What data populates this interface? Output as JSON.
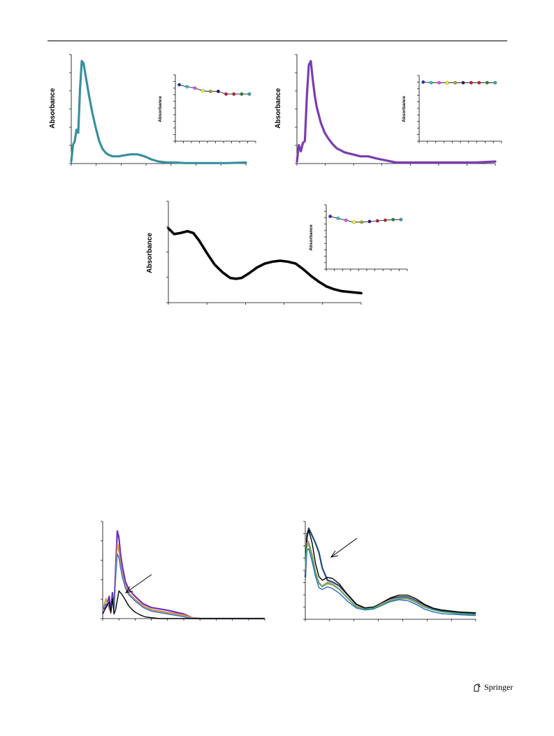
{
  "header": {
    "rule": true
  },
  "footer": {
    "publisher": "Springer",
    "logo_icon": "springer-horse-icon"
  },
  "colors": {
    "teal": "#3a8f9f",
    "purple": "#7a3cb0",
    "black": "#000000",
    "marker_sequence": [
      "#2233cc",
      "#22cccc",
      "#ff44ff",
      "#ffff00",
      "#aaaa22",
      "#331177",
      "#cc1144",
      "#cc2222",
      "#228833",
      "#33aaaa"
    ]
  },
  "chart_data": [
    {
      "id": "panel-top-left",
      "type": "line",
      "ylabel": "Absorbance",
      "xlabel": "",
      "title": "",
      "color": "#3a8f9f",
      "x": [
        0,
        1,
        2,
        3,
        4,
        5,
        6,
        7,
        8,
        9,
        10,
        12,
        14,
        16,
        18,
        20,
        22,
        24,
        27,
        30,
        34,
        38,
        42,
        46,
        50,
        55,
        60,
        65,
        70,
        75,
        80,
        90,
        100
      ],
      "y": [
        0.02,
        0.18,
        0.22,
        0.33,
        0.3,
        0.72,
        1.0,
        0.98,
        0.88,
        0.78,
        0.68,
        0.5,
        0.35,
        0.22,
        0.14,
        0.1,
        0.08,
        0.07,
        0.07,
        0.08,
        0.09,
        0.09,
        0.07,
        0.04,
        0.02,
        0.01,
        0.01,
        0.005,
        0.005,
        0.005,
        0.005,
        0.005,
        0.01
      ],
      "inset": {
        "type": "line",
        "ylabel": "Absorbance",
        "markers": true,
        "values": [
          0.85,
          0.82,
          0.8,
          0.76,
          0.75,
          0.75,
          0.71,
          0.71,
          0.71,
          0.71
        ]
      }
    },
    {
      "id": "panel-top-right",
      "type": "line",
      "ylabel": "Absorbance",
      "xlabel": "",
      "title": "",
      "color": "#7a3cb0",
      "x": [
        0,
        1,
        2,
        3,
        4,
        5,
        6,
        7,
        8,
        9,
        10,
        12,
        14,
        16,
        18,
        20,
        24,
        28,
        32,
        36,
        40,
        45,
        50,
        55,
        60,
        65,
        70,
        80,
        90,
        100
      ],
      "y": [
        0.02,
        0.18,
        0.12,
        0.2,
        0.22,
        0.65,
        0.96,
        1.0,
        0.82,
        0.66,
        0.55,
        0.4,
        0.3,
        0.24,
        0.19,
        0.15,
        0.11,
        0.09,
        0.07,
        0.07,
        0.05,
        0.03,
        0.01,
        0.01,
        0.01,
        0.01,
        0.01,
        0.01,
        0.01,
        0.02
      ],
      "inset": {
        "type": "line",
        "ylabel": "Absorbance",
        "markers": true,
        "values": [
          0.9,
          0.89,
          0.89,
          0.89,
          0.89,
          0.89,
          0.89,
          0.89,
          0.89,
          0.89
        ]
      }
    },
    {
      "id": "panel-middle",
      "type": "line",
      "ylabel": "Absorbance",
      "xlabel": "",
      "title": "",
      "color": "#000000",
      "x": [
        0,
        3,
        6,
        10,
        13,
        16,
        20,
        24,
        28,
        32,
        35,
        38,
        42,
        46,
        50,
        54,
        58,
        62,
        66,
        70,
        74,
        78,
        82,
        86,
        90,
        95,
        100
      ],
      "y": [
        0.78,
        0.72,
        0.73,
        0.75,
        0.73,
        0.65,
        0.52,
        0.4,
        0.32,
        0.26,
        0.25,
        0.26,
        0.31,
        0.37,
        0.41,
        0.43,
        0.44,
        0.43,
        0.41,
        0.35,
        0.28,
        0.22,
        0.17,
        0.14,
        0.12,
        0.11,
        0.1
      ],
      "inset": {
        "type": "line",
        "ylabel": "Absorbance",
        "markers": true,
        "values": [
          0.82,
          0.79,
          0.76,
          0.73,
          0.73,
          0.74,
          0.75,
          0.76,
          0.77,
          0.77
        ]
      }
    },
    {
      "id": "panel-bottom-left",
      "type": "line",
      "ylabel": "",
      "xlabel": "",
      "title": "",
      "arrow": true,
      "series": [
        {
          "color": "#6a2fc0",
          "x": [
            0,
            2,
            4,
            5,
            6,
            7,
            8,
            9,
            10,
            11,
            12,
            14,
            16,
            20,
            25,
            30,
            40,
            50,
            55,
            60,
            70,
            100
          ],
          "y": [
            0.1,
            0.12,
            0.24,
            0.08,
            0.28,
            0.12,
            0.55,
            0.95,
            0.88,
            0.7,
            0.58,
            0.4,
            0.32,
            0.24,
            0.16,
            0.12,
            0.09,
            0.05,
            0.01,
            0.0,
            0.0,
            0.0
          ]
        },
        {
          "color": "#e08a30",
          "x": [
            0,
            2,
            4,
            5,
            6,
            7,
            8,
            9,
            10,
            11,
            12,
            14,
            16,
            20,
            25,
            30,
            40,
            50,
            55,
            60,
            70,
            100
          ],
          "y": [
            0.1,
            0.22,
            0.1,
            0.08,
            0.22,
            0.1,
            0.5,
            0.82,
            0.76,
            0.6,
            0.5,
            0.36,
            0.28,
            0.21,
            0.14,
            0.1,
            0.07,
            0.04,
            0.01,
            0.0,
            0.0,
            0.0
          ]
        },
        {
          "color": "#c8a060",
          "x": [
            0,
            2,
            4,
            5,
            6,
            7,
            8,
            9,
            10,
            11,
            12,
            14,
            16,
            20,
            25,
            30,
            40,
            50,
            55,
            60,
            70,
            100
          ],
          "y": [
            0.1,
            0.2,
            0.12,
            0.08,
            0.2,
            0.1,
            0.48,
            0.78,
            0.72,
            0.58,
            0.48,
            0.34,
            0.27,
            0.2,
            0.13,
            0.09,
            0.06,
            0.03,
            0.01,
            0.0,
            0.0,
            0.0
          ]
        },
        {
          "color": "#3a6ec8",
          "x": [
            0,
            2,
            4,
            5,
            6,
            7,
            8,
            9,
            10,
            11,
            12,
            14,
            16,
            20,
            25,
            30,
            40,
            50,
            55,
            60,
            70,
            100
          ],
          "y": [
            0.1,
            0.16,
            0.14,
            0.08,
            0.24,
            0.1,
            0.45,
            0.7,
            0.66,
            0.55,
            0.46,
            0.33,
            0.26,
            0.19,
            0.12,
            0.08,
            0.05,
            0.02,
            0.0,
            0.0,
            0.0,
            0.0
          ]
        },
        {
          "color": "#000000",
          "x": [
            0,
            2,
            4,
            5,
            6,
            7,
            8,
            10,
            12,
            14,
            16,
            18,
            20,
            23,
            26,
            30,
            35,
            40,
            50,
            60,
            100
          ],
          "y": [
            0.05,
            0.12,
            0.18,
            0.06,
            0.22,
            0.05,
            0.1,
            0.3,
            0.26,
            0.2,
            0.14,
            0.1,
            0.07,
            0.04,
            0.02,
            0.01,
            0.0,
            0.0,
            0.0,
            0.0,
            0.0
          ]
        }
      ]
    },
    {
      "id": "panel-bottom-right",
      "type": "line",
      "ylabel": "",
      "xlabel": "",
      "title": "",
      "arrow": true,
      "series": [
        {
          "color": "#1a4a7a",
          "x": [
            0,
            1,
            2,
            4,
            6,
            8,
            10,
            13,
            16,
            20,
            25,
            30,
            35,
            40,
            45,
            50,
            55,
            60,
            65,
            70,
            75,
            80,
            90,
            100
          ],
          "y": [
            0.45,
            0.88,
            0.98,
            0.9,
            0.82,
            0.72,
            0.55,
            0.42,
            0.4,
            0.36,
            0.26,
            0.16,
            0.12,
            0.13,
            0.17,
            0.22,
            0.24,
            0.24,
            0.2,
            0.15,
            0.11,
            0.09,
            0.07,
            0.06
          ]
        },
        {
          "color": "#000000",
          "x": [
            0,
            1,
            2,
            4,
            6,
            8,
            10,
            13,
            16,
            20,
            25,
            30,
            35,
            40,
            45,
            50,
            55,
            60,
            65,
            70,
            75,
            80,
            90,
            100
          ],
          "y": [
            0.5,
            0.92,
            0.96,
            0.82,
            0.6,
            0.46,
            0.42,
            0.45,
            0.44,
            0.38,
            0.26,
            0.16,
            0.12,
            0.13,
            0.18,
            0.23,
            0.26,
            0.26,
            0.22,
            0.16,
            0.12,
            0.1,
            0.08,
            0.07
          ]
        },
        {
          "color": "#e08a70",
          "x": [
            0,
            1,
            2,
            4,
            6,
            8,
            10,
            13,
            16,
            20,
            25,
            30,
            35,
            40,
            45,
            50,
            55,
            60,
            65,
            70,
            75,
            80,
            90,
            100
          ],
          "y": [
            0.55,
            0.82,
            0.84,
            0.7,
            0.52,
            0.4,
            0.36,
            0.4,
            0.38,
            0.33,
            0.23,
            0.14,
            0.11,
            0.12,
            0.17,
            0.21,
            0.23,
            0.23,
            0.19,
            0.14,
            0.1,
            0.08,
            0.06,
            0.05
          ]
        },
        {
          "color": "#c8a060",
          "x": [
            0,
            1,
            2,
            4,
            6,
            8,
            10,
            13,
            16,
            20,
            25,
            30,
            35,
            40,
            45,
            50,
            55,
            60,
            65,
            70,
            75,
            80,
            90,
            100
          ],
          "y": [
            0.52,
            0.78,
            0.8,
            0.66,
            0.5,
            0.38,
            0.35,
            0.38,
            0.37,
            0.32,
            0.22,
            0.14,
            0.11,
            0.12,
            0.16,
            0.2,
            0.22,
            0.22,
            0.18,
            0.13,
            0.1,
            0.08,
            0.06,
            0.05
          ]
        },
        {
          "color": "#2a66c8",
          "x": [
            0,
            1,
            2,
            4,
            6,
            8,
            10,
            13,
            16,
            20,
            25,
            30,
            35,
            40,
            45,
            50,
            55,
            60,
            65,
            70,
            75,
            80,
            90,
            100
          ],
          "y": [
            0.48,
            0.74,
            0.76,
            0.62,
            0.46,
            0.34,
            0.32,
            0.35,
            0.33,
            0.28,
            0.19,
            0.12,
            0.1,
            0.11,
            0.15,
            0.19,
            0.21,
            0.2,
            0.16,
            0.11,
            0.08,
            0.06,
            0.05,
            0.04
          ]
        },
        {
          "color": "#40b060",
          "x": [
            0,
            1,
            2,
            4,
            6,
            8,
            10,
            13,
            16,
            20,
            25,
            30,
            35,
            40,
            45,
            50,
            55,
            60,
            65,
            70,
            75,
            80,
            90,
            100
          ],
          "y": [
            0.58,
            0.8,
            0.82,
            0.68,
            0.5,
            0.39,
            0.35,
            0.39,
            0.37,
            0.32,
            0.22,
            0.13,
            0.11,
            0.12,
            0.16,
            0.2,
            0.22,
            0.22,
            0.18,
            0.13,
            0.1,
            0.08,
            0.06,
            0.05
          ]
        }
      ]
    }
  ]
}
